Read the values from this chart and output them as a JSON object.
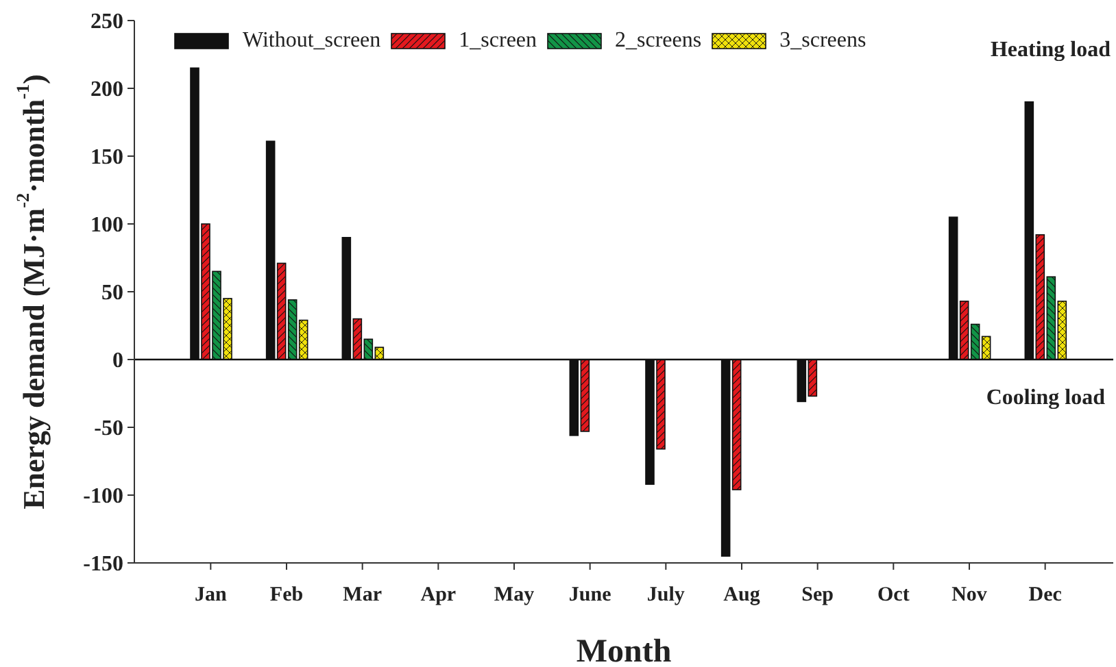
{
  "chart_data": {
    "type": "bar",
    "xlabel": "Month",
    "ylabel": "Energy demand (MJ·m$^{-2}$·month$^{-1}$)",
    "annotations": [
      "Heating load",
      "Cooling load"
    ],
    "categories": [
      "Jan",
      "Feb",
      "Mar",
      "Apr",
      "May",
      "June",
      "July",
      "Aug",
      "Sep",
      "Oct",
      "Nov",
      "Dec"
    ],
    "series": [
      {
        "name": "Without_screen",
        "color": "#111111",
        "values": [
          215,
          161,
          90,
          null,
          null,
          -56,
          -92,
          -145,
          -31,
          null,
          105,
          190
        ]
      },
      {
        "name": "1_screen",
        "color": "#e3191e",
        "values": [
          100,
          71,
          30,
          null,
          null,
          -53,
          -66,
          -96,
          -27,
          null,
          43,
          92
        ]
      },
      {
        "name": "2_screens",
        "color": "#129447",
        "values": [
          65,
          44,
          15,
          null,
          null,
          null,
          null,
          null,
          null,
          null,
          26,
          61
        ]
      },
      {
        "name": "3_screens",
        "color": "#f0e10c",
        "values": [
          45,
          29,
          9,
          null,
          null,
          null,
          null,
          null,
          null,
          null,
          17,
          43
        ]
      }
    ],
    "ylim": [
      -150,
      250
    ],
    "yticks": [
      -150,
      -100,
      -50,
      0,
      50,
      100,
      150,
      200,
      250
    ],
    "grid": false,
    "legend": "top",
    "ref_lines": [
      {
        "axis": "y",
        "value": 0
      }
    ]
  }
}
